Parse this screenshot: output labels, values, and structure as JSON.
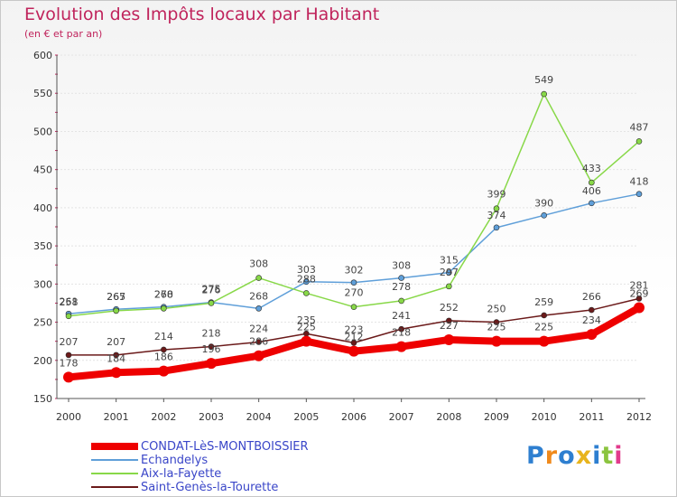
{
  "chart_data": {
    "type": "line",
    "title": "Evolution des Impôts locaux par Habitant",
    "subtitle": "(en € et par an)",
    "xlabel": "",
    "ylabel": "",
    "ylim": [
      150,
      600
    ],
    "yticks": [
      "150",
      "200",
      "250",
      "300",
      "350",
      "400",
      "450",
      "500",
      "550",
      "600"
    ],
    "categories": [
      "2000",
      "2001",
      "2002",
      "2003",
      "2004",
      "2005",
      "2006",
      "2007",
      "2008",
      "2009",
      "2010",
      "2011",
      "2012"
    ],
    "series": [
      {
        "name": "CONDAT-LèS-MONTBOISSIER",
        "color": "#ee0000",
        "values": [
          178,
          184,
          186,
          196,
          206,
          225,
          212,
          218,
          227,
          225,
          225,
          234,
          269
        ]
      },
      {
        "name": "Echandelys",
        "color": "#5f9fd9",
        "values": [
          261,
          267,
          270,
          276,
          268,
          303,
          302,
          308,
          315,
          374,
          390,
          406,
          418
        ]
      },
      {
        "name": "Aix-la-Fayette",
        "color": "#88d848",
        "values": [
          258,
          265,
          268,
          275,
          308,
          288,
          270,
          278,
          297,
          399,
          549,
          433,
          487
        ]
      },
      {
        "name": "Saint-Genès-la-Tourette",
        "color": "#6b1a1a",
        "values": [
          207,
          207,
          214,
          218,
          224,
          235,
          223,
          241,
          252,
          250,
          259,
          266,
          281
        ]
      }
    ]
  },
  "logo": {
    "letters": [
      "P",
      "r",
      "o",
      "x",
      "i",
      "t",
      "i"
    ],
    "colors": [
      "#2e7fd0",
      "#f08a1c",
      "#2e7fd0",
      "#e8b41c",
      "#2e7fd0",
      "#8bc43f",
      "#e23a8c"
    ]
  }
}
